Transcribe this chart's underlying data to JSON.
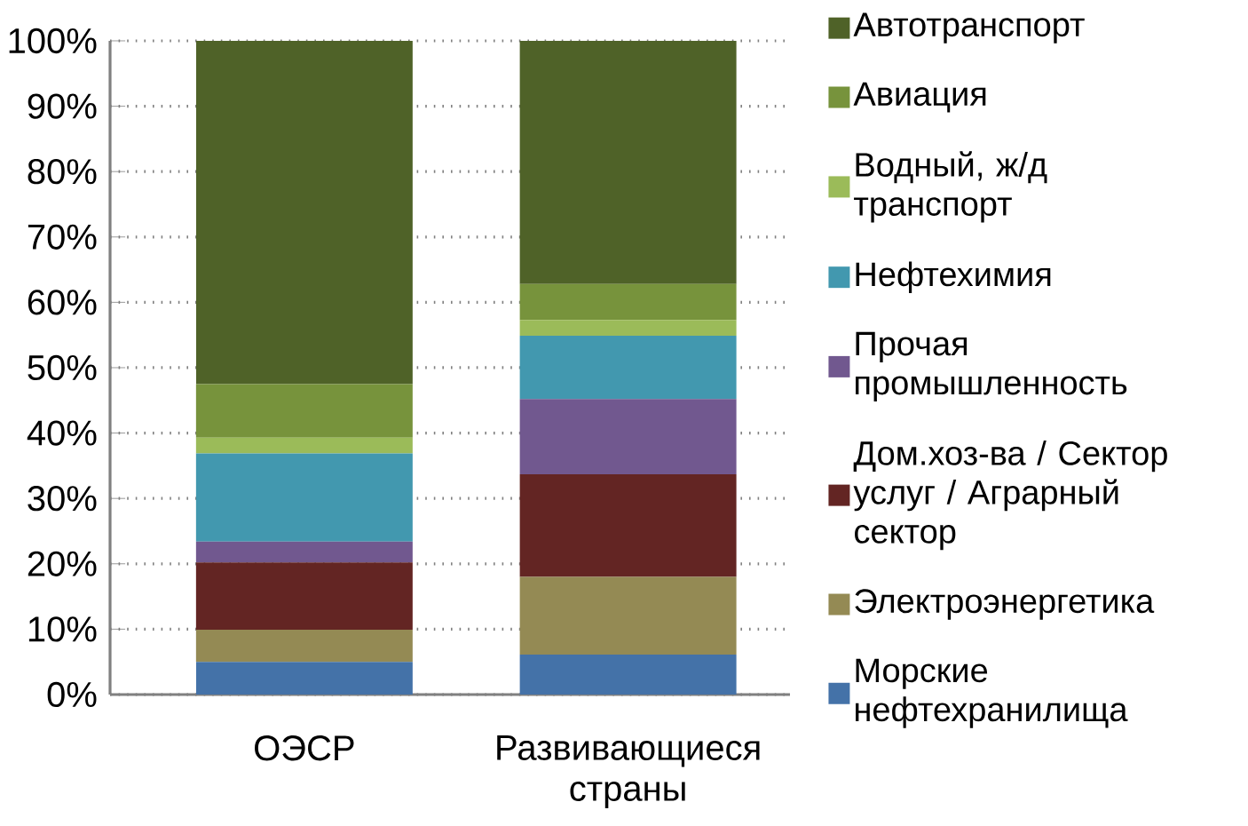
{
  "chart_data": {
    "type": "bar",
    "stacked": true,
    "categories": [
      "ОЭСР",
      "Развивающиеся страны"
    ],
    "series": [
      {
        "name": "Морские нефтехранилища",
        "color": "#4472a8",
        "values": [
          5.0,
          6.1
        ]
      },
      {
        "name": "Электроэнергетика",
        "color": "#948a54",
        "values": [
          4.9,
          11.9
        ]
      },
      {
        "name": "Дом.хоз-ва / Сектор услуг / Аграрный сектор",
        "color": "#632523",
        "values": [
          10.3,
          15.7
        ]
      },
      {
        "name": "Прочая промышленность",
        "color": "#71588f",
        "values": [
          3.2,
          11.5
        ]
      },
      {
        "name": "Нефтехимия",
        "color": "#4298af",
        "values": [
          13.5,
          9.7
        ]
      },
      {
        "name": "Водный, ж/д транспорт",
        "color": "#9bbb59",
        "values": [
          2.4,
          2.4
        ]
      },
      {
        "name": "Авиация",
        "color": "#77933c",
        "values": [
          8.2,
          5.5
        ]
      },
      {
        "name": "Автотранспорт",
        "color": "#4f6228",
        "values": [
          52.5,
          37.2
        ]
      }
    ],
    "ylim": [
      0,
      100
    ],
    "yticks": [
      {
        "value": 0,
        "label": "0%"
      },
      {
        "value": 10,
        "label": "10%"
      },
      {
        "value": 20,
        "label": "20%"
      },
      {
        "value": 30,
        "label": "30%"
      },
      {
        "value": 40,
        "label": "40%"
      },
      {
        "value": 50,
        "label": "50%"
      },
      {
        "value": 60,
        "label": "60%"
      },
      {
        "value": 70,
        "label": "70%"
      },
      {
        "value": 80,
        "label": "80%"
      },
      {
        "value": 90,
        "label": "90%"
      },
      {
        "value": 100,
        "label": "100%"
      }
    ],
    "grid": "y",
    "legend": "right"
  }
}
